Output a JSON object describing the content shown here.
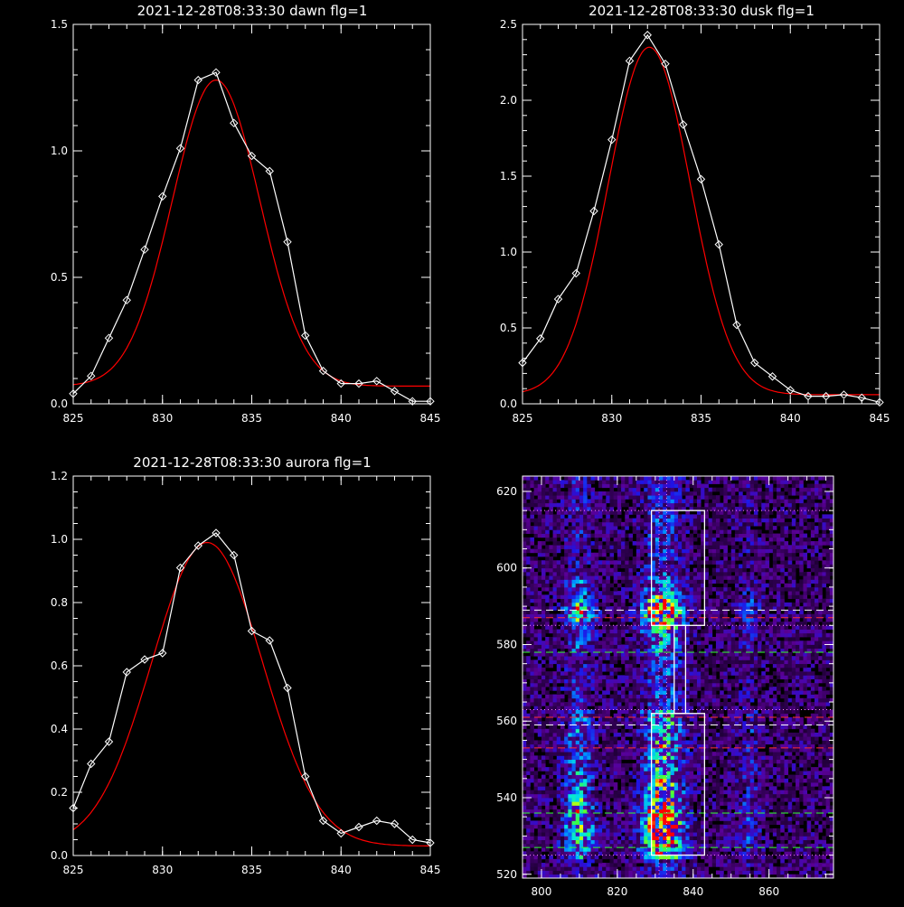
{
  "chart_data": [
    {
      "type": "line",
      "title": "2021-12-28T08:33:30 dawn flg=1",
      "xlim": [
        825,
        845
      ],
      "ylim": [
        0,
        1.5
      ],
      "x_ticks": [
        "825",
        "830",
        "835",
        "840",
        "845"
      ],
      "y_ticks": [
        "0.0",
        "0.5",
        "1.0",
        "1.5"
      ],
      "x_tick_values": [
        825,
        830,
        835,
        840,
        845
      ],
      "y_tick_values": [
        0,
        0.5,
        1.0,
        1.5
      ],
      "x_minor_step": 1,
      "y_minor_step": 0.1,
      "series": [
        {
          "color": "#ffffff",
          "marker": "diamond",
          "x": [
            825,
            826,
            827,
            828,
            829,
            830,
            831,
            832,
            833,
            834,
            835,
            836,
            837,
            838,
            839,
            840,
            841,
            842,
            843,
            844,
            845
          ],
          "y": [
            0.04,
            0.11,
            0.26,
            0.41,
            0.61,
            0.82,
            1.01,
            1.28,
            1.31,
            1.11,
            0.98,
            0.92,
            0.64,
            0.27,
            0.13,
            0.08,
            0.08,
            0.09,
            0.05,
            0.01,
            0.01
          ]
        },
        {
          "color": "#ff0000",
          "marker": "none",
          "fit": {
            "amp": 1.21,
            "center": 833.0,
            "sigma": 2.45,
            "offset": 0.07
          }
        }
      ]
    },
    {
      "type": "line",
      "title": "2021-12-28T08:33:30 dusk flg=1",
      "xlim": [
        825,
        845
      ],
      "ylim": [
        0,
        2.5
      ],
      "x_ticks": [
        "825",
        "830",
        "835",
        "840",
        "845"
      ],
      "y_ticks": [
        "0.0",
        "0.5",
        "1.0",
        "1.5",
        "2.0",
        "2.5"
      ],
      "x_tick_values": [
        825,
        830,
        835,
        840,
        845
      ],
      "y_tick_values": [
        0,
        0.5,
        1.0,
        1.5,
        2.0,
        2.5
      ],
      "x_minor_step": 1,
      "y_minor_step": 0.1,
      "series": [
        {
          "color": "#ffffff",
          "marker": "diamond",
          "x": [
            825,
            826,
            827,
            828,
            829,
            830,
            831,
            832,
            833,
            834,
            835,
            836,
            837,
            838,
            839,
            840,
            841,
            842,
            843,
            844,
            845
          ],
          "y": [
            0.27,
            0.43,
            0.69,
            0.86,
            1.27,
            1.74,
            2.26,
            2.43,
            2.24,
            1.84,
            1.48,
            1.05,
            0.52,
            0.27,
            0.18,
            0.09,
            0.05,
            0.05,
            0.06,
            0.04,
            0.01
          ]
        },
        {
          "color": "#ff0000",
          "marker": "none",
          "fit": {
            "amp": 2.29,
            "center": 832.1,
            "sigma": 2.3,
            "offset": 0.06
          }
        }
      ]
    },
    {
      "type": "line",
      "title": "2021-12-28T08:33:30 aurora flg=1",
      "xlim": [
        825,
        845
      ],
      "ylim": [
        0,
        1.2
      ],
      "x_ticks": [
        "825",
        "830",
        "835",
        "840",
        "845"
      ],
      "y_ticks": [
        "0.0",
        "0.2",
        "0.4",
        "0.6",
        "0.8",
        "1.0",
        "1.2"
      ],
      "x_tick_values": [
        825,
        830,
        835,
        840,
        845
      ],
      "y_tick_values": [
        0,
        0.2,
        0.4,
        0.6,
        0.8,
        1.0,
        1.2
      ],
      "x_minor_step": 1,
      "y_minor_step": 0.05,
      "series": [
        {
          "color": "#ffffff",
          "marker": "diamond",
          "x": [
            825,
            826,
            827,
            828,
            829,
            830,
            831,
            832,
            833,
            834,
            835,
            836,
            837,
            838,
            839,
            840,
            841,
            842,
            843,
            844,
            845
          ],
          "y": [
            0.15,
            0.29,
            0.36,
            0.58,
            0.62,
            0.64,
            0.91,
            0.98,
            1.02,
            0.95,
            0.71,
            0.68,
            0.53,
            0.25,
            0.11,
            0.07,
            0.09,
            0.11,
            0.1,
            0.05,
            0.04
          ]
        },
        {
          "color": "#ff0000",
          "marker": "none",
          "fit": {
            "amp": 0.96,
            "center": 832.5,
            "sigma": 3.1,
            "offset": 0.03
          }
        }
      ]
    },
    {
      "type": "heatmap",
      "title": "",
      "xlim": [
        795,
        877
      ],
      "ylim": [
        519,
        624
      ],
      "x_ticks": [
        "800",
        "820",
        "840",
        "860"
      ],
      "y_ticks": [
        "520",
        "540",
        "560",
        "580",
        "600",
        "620"
      ],
      "x_tick_values": [
        800,
        820,
        840,
        860
      ],
      "y_tick_values": [
        520,
        540,
        560,
        580,
        600,
        620
      ],
      "x_minor_step": 5,
      "y_minor_step": 5,
      "bright_columns": [
        {
          "x_center": 810,
          "width": 6,
          "peak": 0.62
        },
        {
          "x_center": 832,
          "width": 8,
          "peak": 1.0
        },
        {
          "x_center": 855,
          "width": 4,
          "peak": 0.3
        }
      ],
      "boxes": [
        {
          "x": [
            829,
            843
          ],
          "y": [
            585,
            615
          ]
        },
        {
          "x": [
            829,
            843
          ],
          "y": [
            525,
            562
          ]
        },
        {
          "x": [
            835,
            838
          ],
          "y": [
            562,
            585
          ]
        }
      ],
      "hlines": [
        {
          "y": 615,
          "color": "#ff80ff",
          "style": "dotted"
        },
        {
          "y": 589,
          "color": "#ffffff",
          "style": "dashed"
        },
        {
          "y": 587,
          "color": "#ff3030",
          "style": "dashed"
        },
        {
          "y": 585,
          "color": "#ff80ff",
          "style": "dotted"
        },
        {
          "y": 578,
          "color": "#30ff30",
          "style": "dashed"
        },
        {
          "y": 563,
          "color": "#ff80ff",
          "style": "dotted"
        },
        {
          "y": 561,
          "color": "#ff3030",
          "style": "dashed"
        },
        {
          "y": 559,
          "color": "#ffffff",
          "style": "dashed"
        },
        {
          "y": 553,
          "color": "#ff3030",
          "style": "dashed"
        },
        {
          "y": 536,
          "color": "#30ff30",
          "style": "dashed"
        },
        {
          "y": 527,
          "color": "#30ff30",
          "style": "dashed"
        },
        {
          "y": 525,
          "color": "#ff80ff",
          "style": "dotted"
        }
      ],
      "vlines": [
        {
          "x": 831,
          "color": "#ff80ff",
          "style": "dotted"
        },
        {
          "x": 833,
          "color": "#ff80ff",
          "style": "dotted"
        }
      ]
    }
  ]
}
